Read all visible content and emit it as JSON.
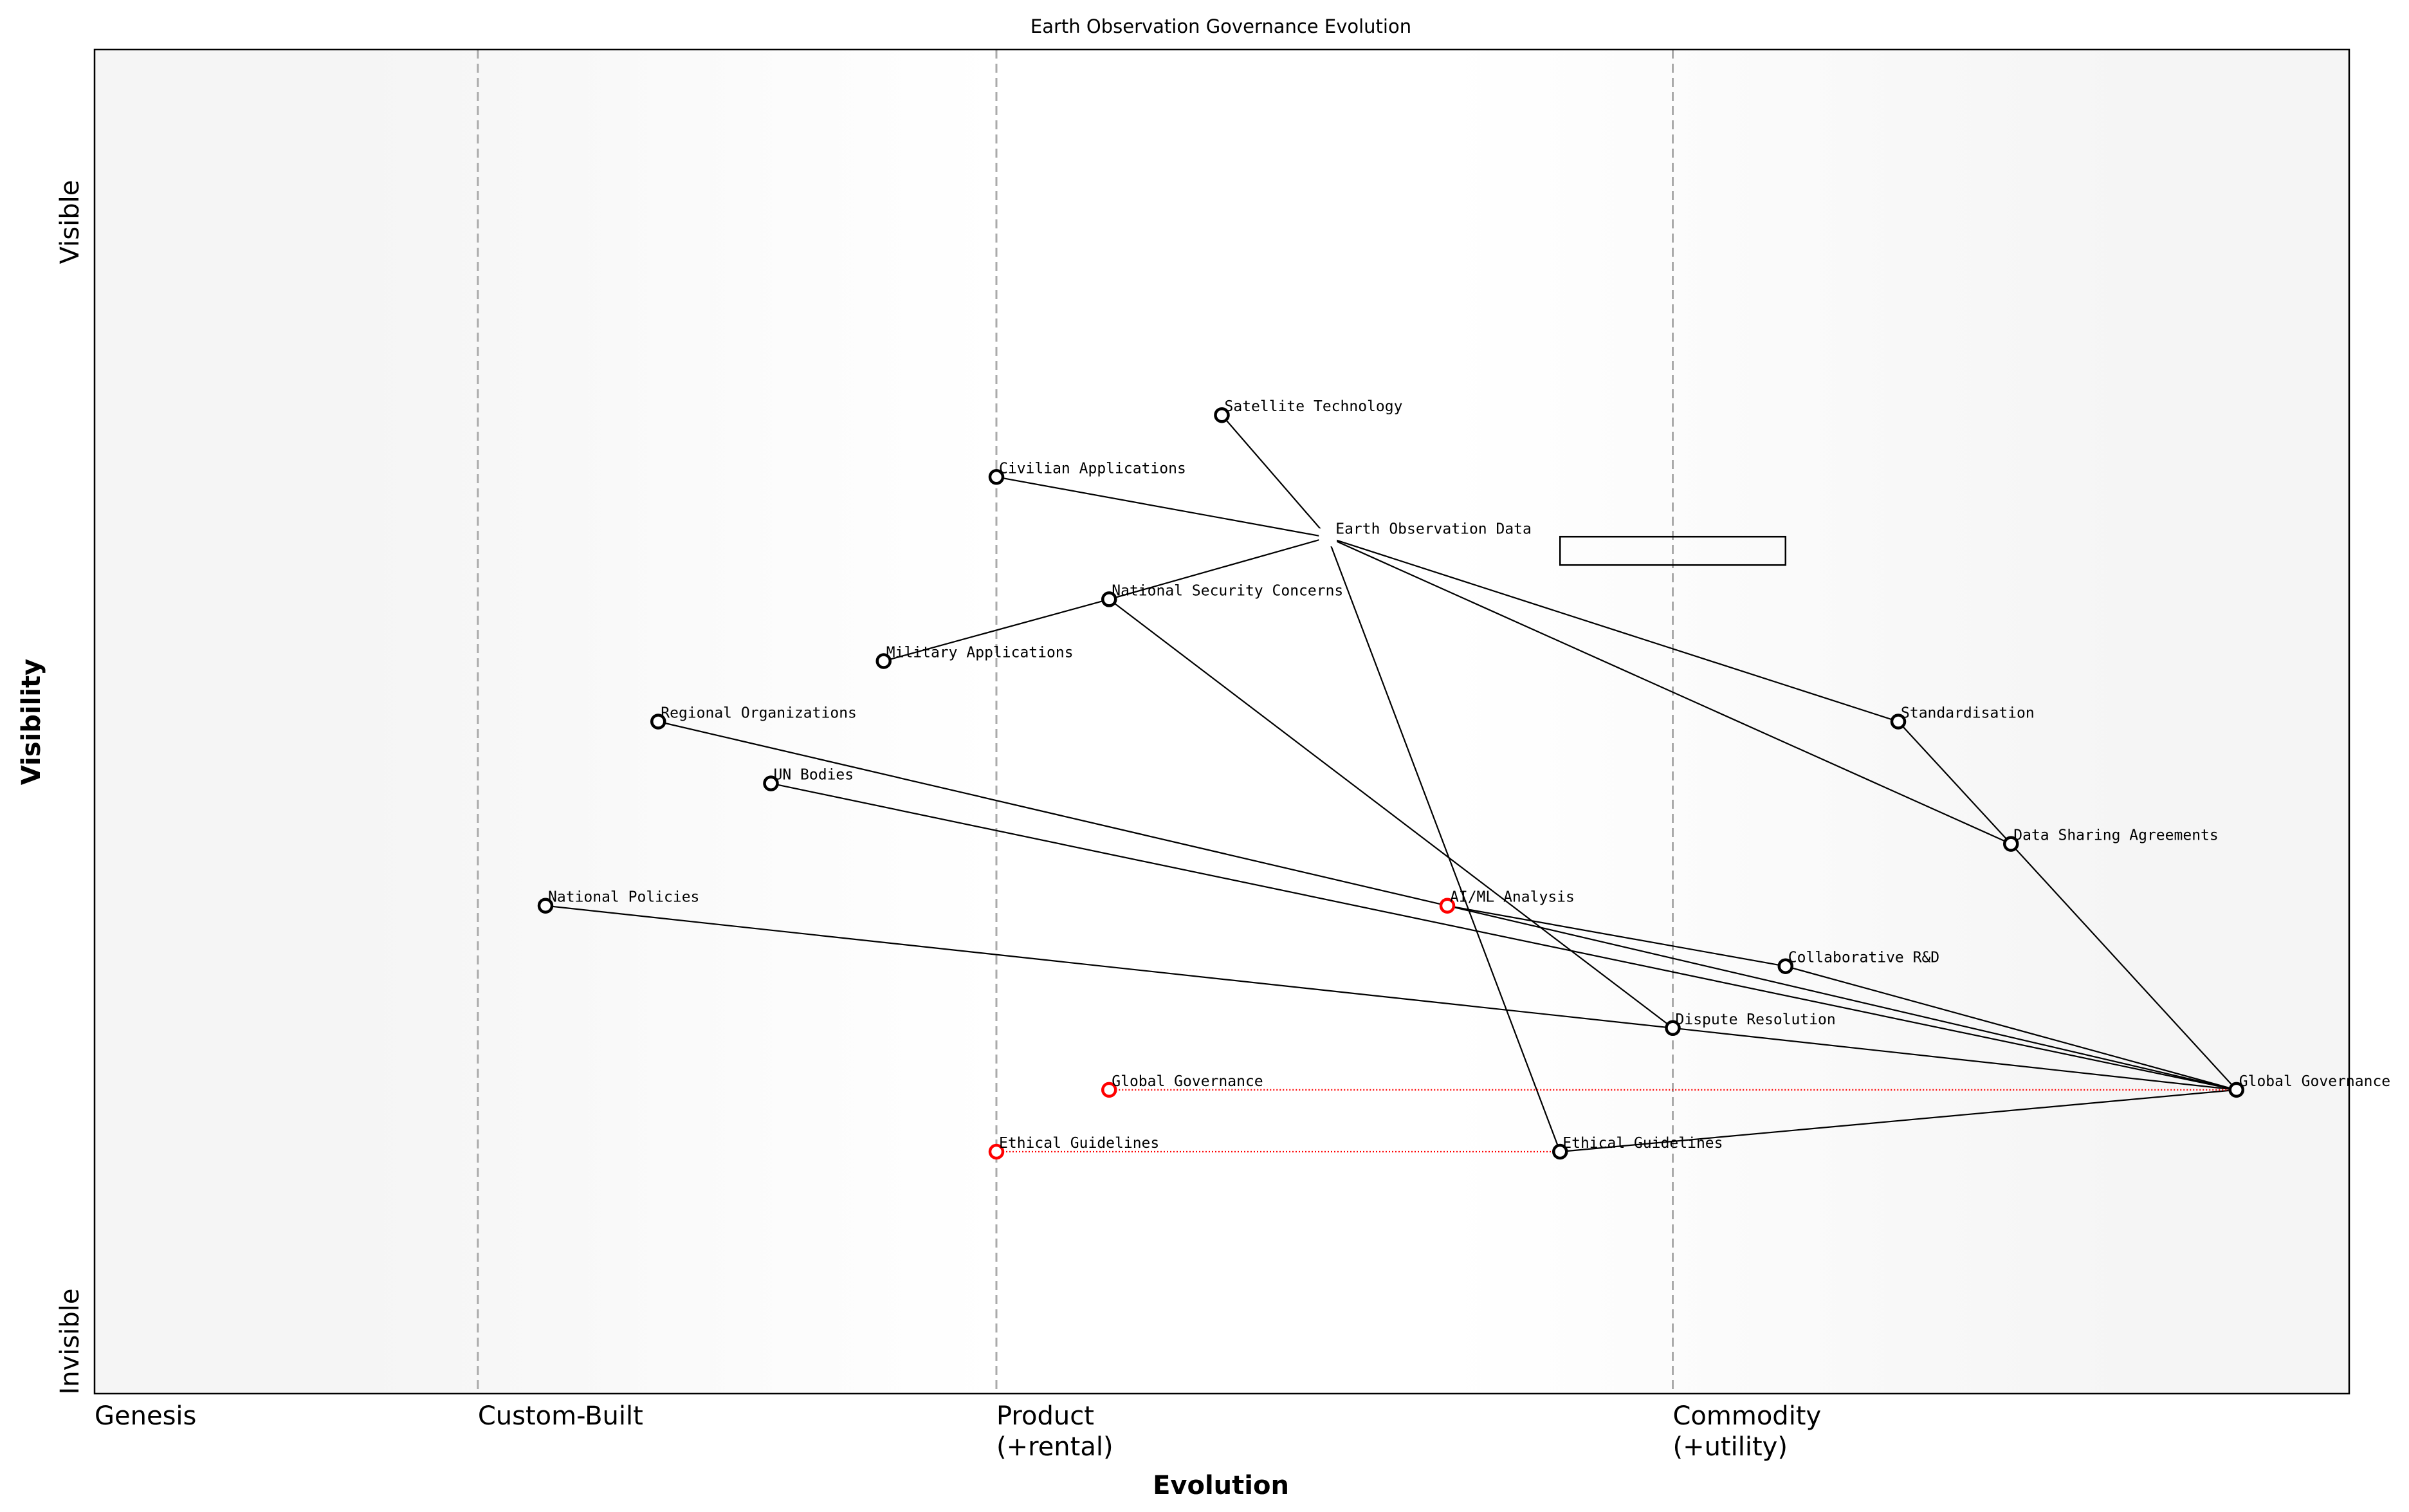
{
  "title": "Earth Observation Governance Evolution",
  "x_axis_label": "Evolution",
  "y_axis_label": "Visibility",
  "y_top_label": "Visible",
  "y_bottom_label": "Invisible",
  "stages": [
    {
      "label": "Genesis",
      "sub": "",
      "evolution": 0.0
    },
    {
      "label": "Custom-Built",
      "sub": "",
      "evolution": 0.17
    },
    {
      "label": "Product",
      "sub": "(+rental)",
      "evolution": 0.4
    },
    {
      "label": "Commodity",
      "sub": "(+utility)",
      "evolution": 0.7
    }
  ],
  "colors": {
    "node": "#000000",
    "evolving_node": "#ff0000",
    "evolve_link": "#ff0000",
    "divider": "#aaaaaa",
    "edge_bg": "#f5f5f5"
  },
  "components": [
    {
      "id": "sat",
      "name": "Satellite Technology",
      "evolution": 0.5,
      "visibility": 0.728
    },
    {
      "id": "civ",
      "name": "Civilian Applications",
      "evolution": 0.4,
      "visibility": 0.682
    },
    {
      "id": "eod",
      "name": "Earth Observation Data",
      "evolution": 0.547,
      "visibility": 0.637,
      "no_marker": true
    },
    {
      "id": "nsc",
      "name": "National Security Concerns",
      "evolution": 0.45,
      "visibility": 0.591
    },
    {
      "id": "mil",
      "name": "Military Applications",
      "evolution": 0.35,
      "visibility": 0.545
    },
    {
      "id": "reg",
      "name": "Regional Organizations",
      "evolution": 0.25,
      "visibility": 0.5
    },
    {
      "id": "un",
      "name": "UN Bodies",
      "evolution": 0.3,
      "visibility": 0.454
    },
    {
      "id": "natpol",
      "name": "National Policies",
      "evolution": 0.2,
      "visibility": 0.363
    },
    {
      "id": "aiml",
      "name": "AI/ML Analysis",
      "evolution": 0.6,
      "visibility": 0.363,
      "evolving": true
    },
    {
      "id": "collab",
      "name": "Collaborative R&D",
      "evolution": 0.75,
      "visibility": 0.318
    },
    {
      "id": "dispute",
      "name": "Dispute Resolution",
      "evolution": 0.7,
      "visibility": 0.272
    },
    {
      "id": "gg",
      "name": "Global Governance",
      "evolution": 0.95,
      "visibility": 0.226
    },
    {
      "id": "gg_old",
      "name": "Global Governance",
      "evolution": 0.45,
      "visibility": 0.226,
      "evolving": true
    },
    {
      "id": "eth",
      "name": "Ethical Guidelines",
      "evolution": 0.65,
      "visibility": 0.18
    },
    {
      "id": "eth_old",
      "name": "Ethical Guidelines",
      "evolution": 0.4,
      "visibility": 0.18,
      "evolving": true
    },
    {
      "id": "std",
      "name": "Standardisation",
      "evolution": 0.8,
      "visibility": 0.5
    },
    {
      "id": "dsa",
      "name": "Data Sharing Agreements",
      "evolution": 0.85,
      "visibility": 0.409
    }
  ],
  "links": [
    [
      "sat",
      "eod"
    ],
    [
      "civ",
      "eod"
    ],
    [
      "eod",
      "nsc"
    ],
    [
      "nsc",
      "mil"
    ],
    [
      "eod",
      "std"
    ],
    [
      "eod",
      "dsa"
    ],
    [
      "eod",
      "eth"
    ],
    [
      "nsc",
      "dispute"
    ],
    [
      "reg",
      "aiml"
    ],
    [
      "aiml",
      "collab"
    ],
    [
      "aiml",
      "gg"
    ],
    [
      "un",
      "gg"
    ],
    [
      "natpol",
      "dispute"
    ],
    [
      "dispute",
      "gg"
    ],
    [
      "collab",
      "gg"
    ],
    [
      "std",
      "dsa"
    ],
    [
      "dsa",
      "gg"
    ],
    [
      "eth",
      "gg"
    ]
  ],
  "evolve_links": [
    [
      "gg_old",
      "gg"
    ],
    [
      "eth_old",
      "eth"
    ]
  ],
  "pipelines": [
    {
      "component": "eod",
      "evolution_start": 0.65,
      "evolution_end": 0.75,
      "visibility": 0.627
    }
  ]
}
